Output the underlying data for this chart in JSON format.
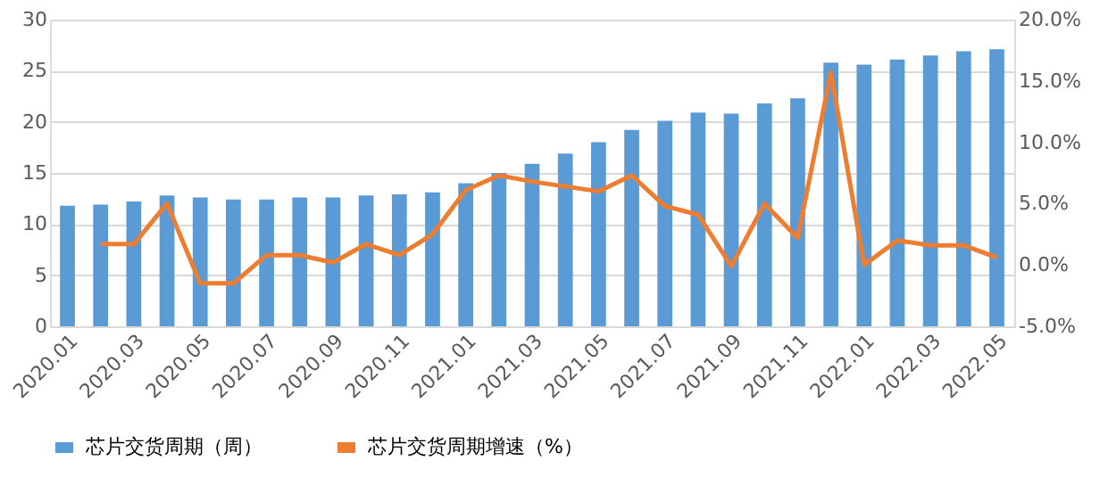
{
  "chart_data": {
    "type": "bar",
    "categories": [
      "2020.01",
      null,
      "2020.03",
      null,
      "2020.05",
      null,
      "2020.07",
      null,
      "2020.09",
      null,
      "2020.11",
      null,
      "2021.01",
      null,
      "2021.03",
      null,
      "2021.05",
      null,
      "2021.07",
      null,
      "2021.09",
      null,
      "2021.11",
      null,
      "2022.01",
      null,
      "2022.03",
      null,
      "2022.05"
    ],
    "series": [
      {
        "name": "芯片交货周期（周）",
        "color": "#5b9bd5",
        "values": [
          11.8,
          11.9,
          12.2,
          12.8,
          12.6,
          12.4,
          12.4,
          12.6,
          12.6,
          12.8,
          12.9,
          13.1,
          14.0,
          15.0,
          15.9,
          16.9,
          18.0,
          19.2,
          20.1,
          20.9,
          20.8,
          21.8,
          22.3,
          25.8,
          25.6,
          26.1,
          26.5,
          26.9,
          27.1
        ]
      },
      {
        "name": "芯片交货周期增速（%）",
        "color": "#ed7d31",
        "type": "line",
        "axis": "y2",
        "values": [
          null,
          1.7,
          1.7,
          5.0,
          -1.5,
          -1.5,
          0.8,
          0.8,
          0.2,
          1.7,
          0.8,
          2.5,
          6.1,
          7.3,
          6.8,
          6.4,
          6.0,
          7.3,
          4.8,
          4.1,
          -0.1,
          5.0,
          2.2,
          15.7,
          0.0,
          2.0,
          1.6,
          1.6,
          0.6
        ]
      }
    ],
    "ylim": [
      0,
      30
    ],
    "yticks": [
      0,
      5,
      10,
      15,
      20,
      25,
      30
    ],
    "y2lim": [
      -5,
      20
    ],
    "y2ticks": [
      {
        "value": -5,
        "label": "-5.0%"
      },
      {
        "value": 0,
        "label": "0.0%"
      },
      {
        "value": 5,
        "label": "5.0%"
      },
      {
        "value": 10,
        "label": "10.0%"
      },
      {
        "value": 15,
        "label": "15.0%"
      },
      {
        "value": 20,
        "label": "20.0%"
      }
    ],
    "grid": "y",
    "legend": "bottom",
    "marker": "none",
    "line_style": "solid"
  }
}
